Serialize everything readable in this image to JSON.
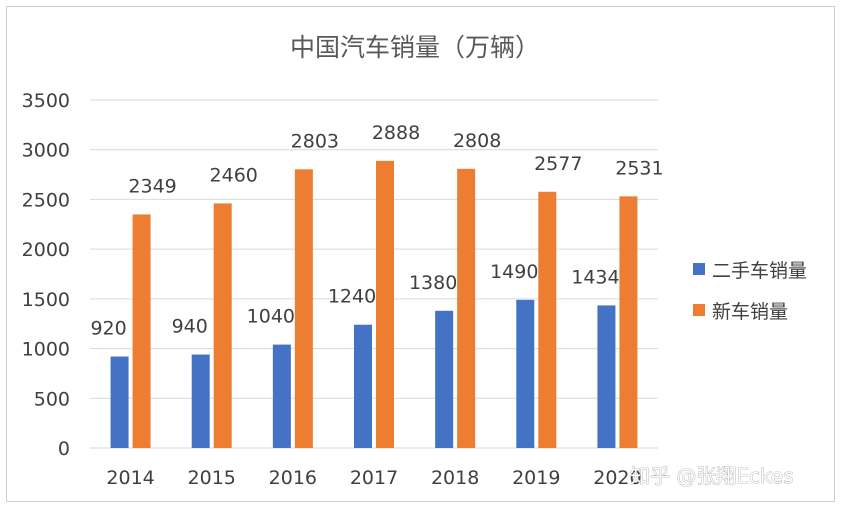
{
  "chart_data": {
    "type": "bar",
    "title": "中国汽车销量（万辆）",
    "categories": [
      "2014",
      "2015",
      "2016",
      "2017",
      "2018",
      "2019",
      "2020"
    ],
    "series": [
      {
        "name": "二手车销量",
        "color": "#4472c4",
        "values": [
          920,
          940,
          1040,
          1240,
          1380,
          1490,
          1434
        ]
      },
      {
        "name": "新车销量",
        "color": "#ed7d31",
        "values": [
          2349,
          2460,
          2803,
          2888,
          2808,
          2577,
          2531
        ]
      }
    ],
    "ylim": [
      0,
      3500
    ],
    "yticks": [
      "0",
      "500",
      "1000",
      "1500",
      "2000",
      "2500",
      "3000",
      "3500"
    ],
    "grid": true,
    "legend_position": "right"
  },
  "watermark": "知乎 @张翔Eckes"
}
